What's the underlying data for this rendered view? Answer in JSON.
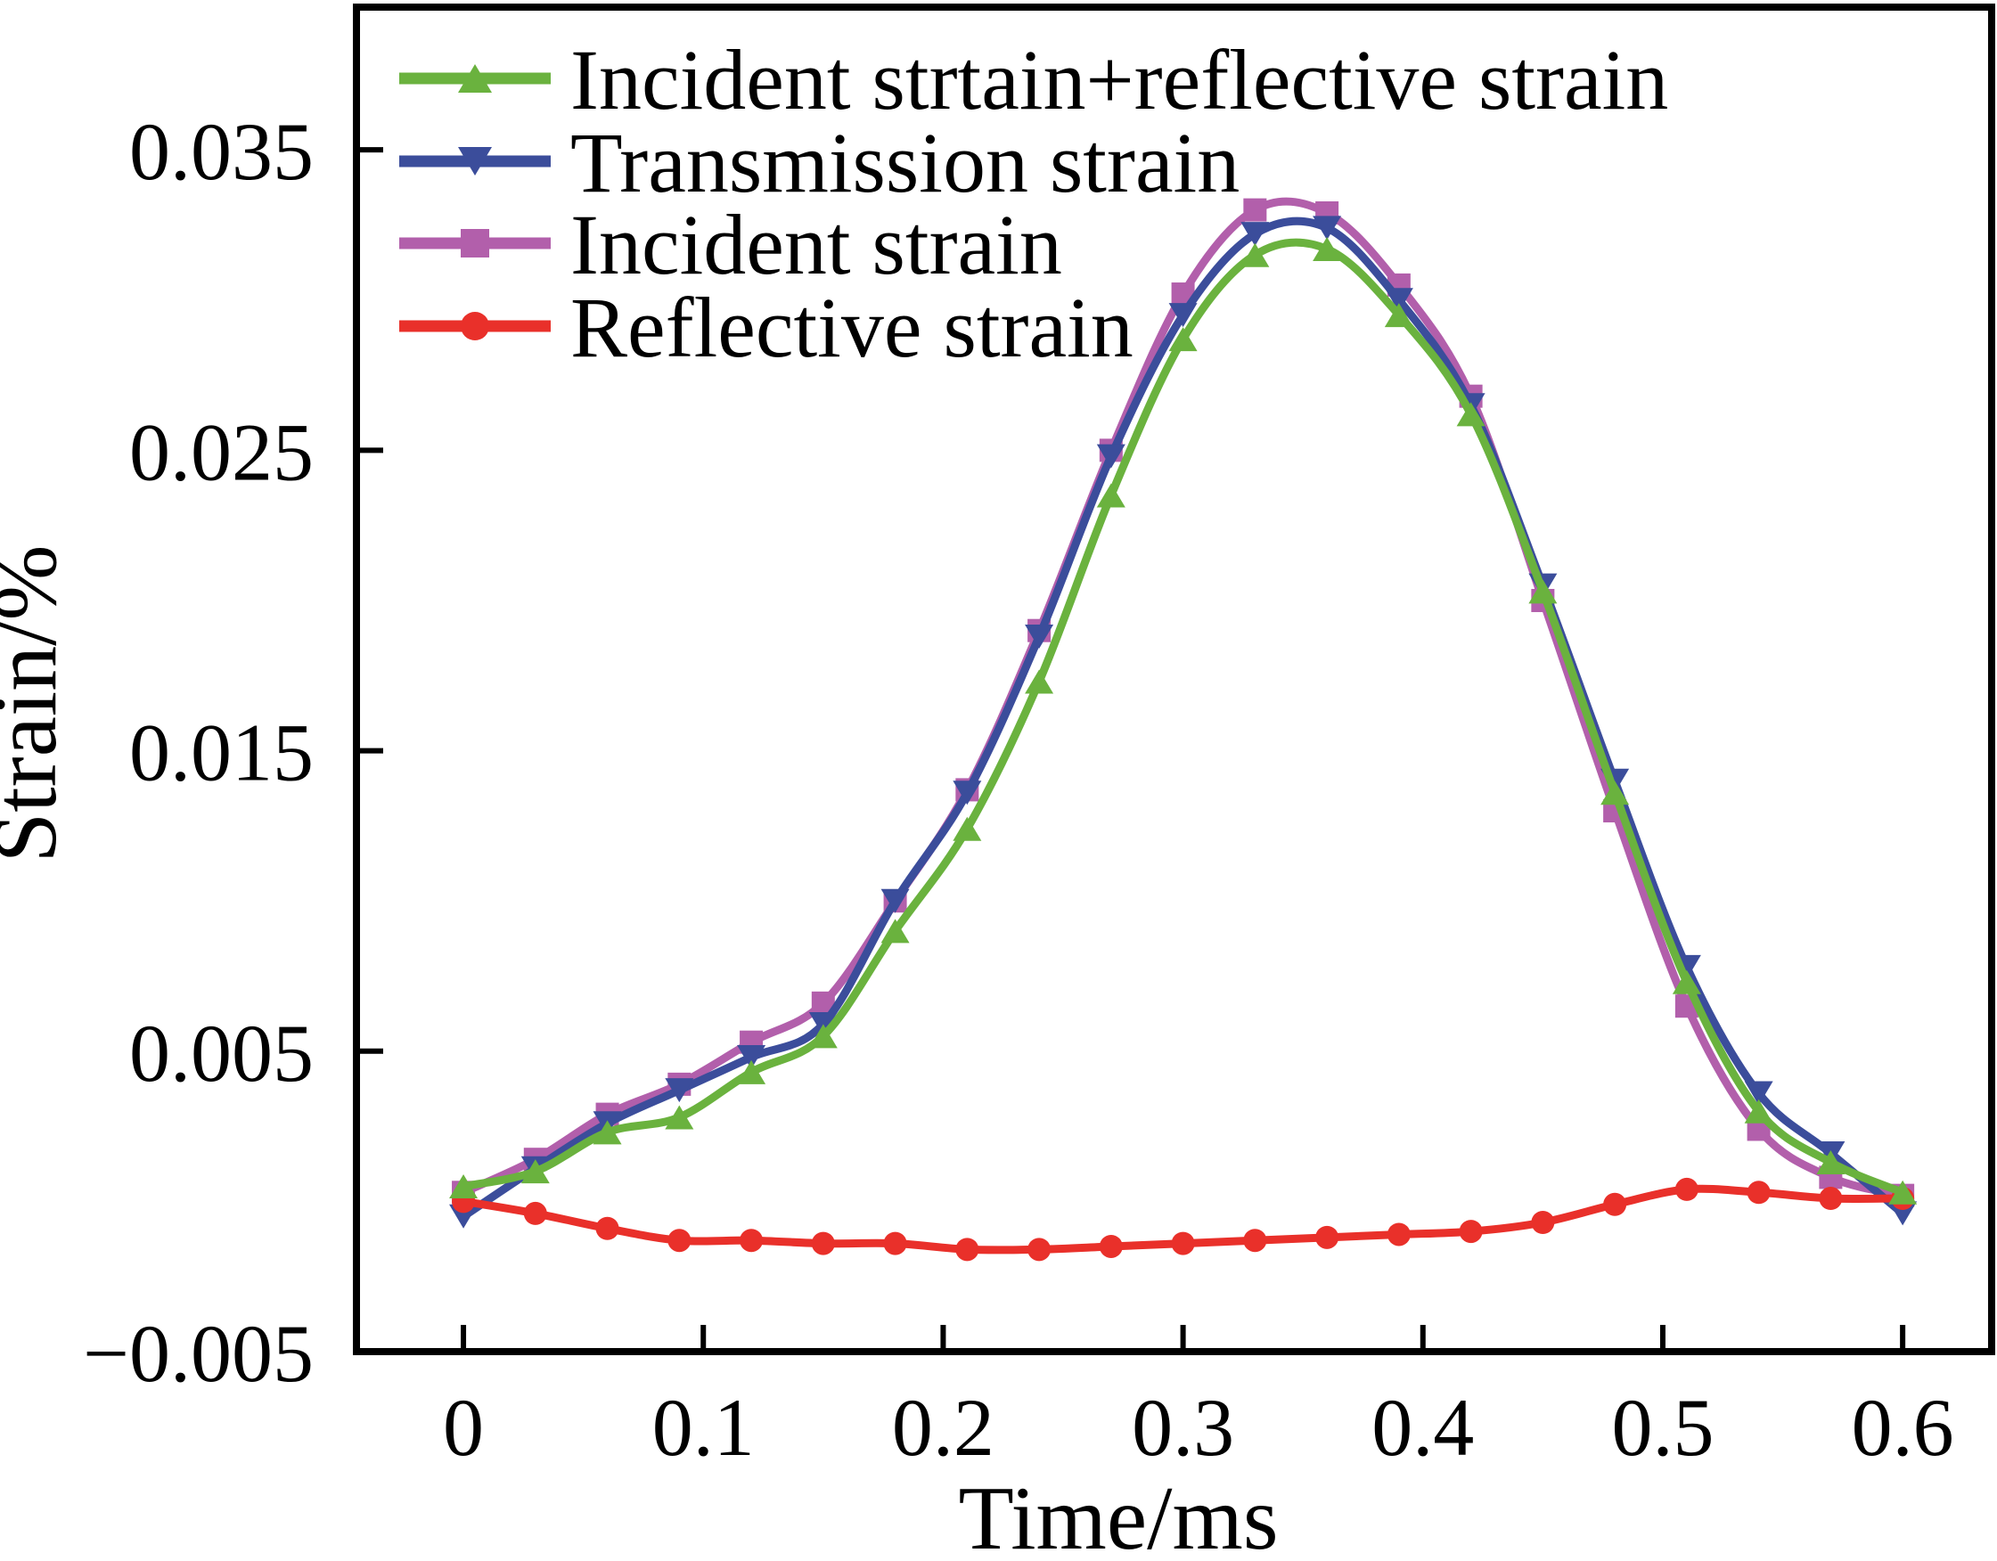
{
  "figure": {
    "background": "#ffffff",
    "axis_color": "#000000"
  },
  "chart_data": {
    "type": "line",
    "title": "",
    "xlabel": "Time/ms",
    "ylabel": "Strain/%",
    "grid": false,
    "legend_position": "upper-left",
    "xlim": [
      -0.0446,
      0.6371
    ],
    "ylim": [
      -0.005,
      0.03975
    ],
    "x_ticks": [
      0,
      0.1,
      0.2,
      0.3,
      0.4,
      0.5,
      0.6
    ],
    "x_tick_labels": [
      "0",
      "0.1",
      "0.2",
      "0.3",
      "0.4",
      "0.5",
      "0.6"
    ],
    "y_ticks": [
      0.035,
      0.025,
      0.015,
      0.005,
      -0.005
    ],
    "y_tick_labels": [
      "0.035",
      "0.025",
      "0.015",
      "0.005",
      "−0.005"
    ],
    "x": [
      0,
      0.03,
      0.06,
      0.09,
      0.12,
      0.15,
      0.18,
      0.21,
      0.24,
      0.27,
      0.3,
      0.33,
      0.36,
      0.39,
      0.42,
      0.45,
      0.48,
      0.51,
      0.54,
      0.57,
      0.6
    ],
    "series": [
      {
        "id": "incident-plus-reflective-strain",
        "name": "Incident strtain+reflective strain",
        "color": "#6ab23e",
        "marker": "triangle-up",
        "values": [
          0.0005,
          0.001,
          0.0023,
          0.0028,
          0.0043,
          0.0055,
          0.009,
          0.0124,
          0.0173,
          0.0235,
          0.0287,
          0.0315,
          0.0317,
          0.0295,
          0.0262,
          0.0203,
          0.0136,
          0.0073,
          0.003,
          0.0013,
          0.0003
        ]
      },
      {
        "id": "transmission-strain",
        "name": "Transmission strain",
        "color": "#3b4d9b",
        "marker": "triangle-down",
        "values": [
          -0.0005,
          0.0011,
          0.0026,
          0.0037,
          0.0048,
          0.0059,
          0.01,
          0.0136,
          0.0188,
          0.0248,
          0.0295,
          0.0322,
          0.0324,
          0.03,
          0.0265,
          0.0205,
          0.014,
          0.0078,
          0.0036,
          0.0016,
          -0.0004
        ]
      },
      {
        "id": "incident-strain",
        "name": "Incident strain",
        "color": "#b25fab",
        "marker": "square",
        "values": [
          0.0003,
          0.0014,
          0.0029,
          0.0039,
          0.0053,
          0.0066,
          0.01,
          0.0137,
          0.019,
          0.025,
          0.0302,
          0.033,
          0.0329,
          0.0305,
          0.0268,
          0.02,
          0.013,
          0.0065,
          0.0024,
          0.0008,
          0.0002
        ]
      },
      {
        "id": "reflective-strain",
        "name": "Reflective strain",
        "color": "#e9302a",
        "marker": "circle",
        "values": [
          0.0,
          -0.0004,
          -0.0009,
          -0.0013,
          -0.0013,
          -0.0014,
          -0.0014,
          -0.0016,
          -0.0016,
          -0.0015,
          -0.0014,
          -0.0013,
          -0.0012,
          -0.0011,
          -0.001,
          -0.0007,
          -0.0001,
          0.0004,
          0.0003,
          0.0001,
          0.0001
        ]
      }
    ]
  }
}
